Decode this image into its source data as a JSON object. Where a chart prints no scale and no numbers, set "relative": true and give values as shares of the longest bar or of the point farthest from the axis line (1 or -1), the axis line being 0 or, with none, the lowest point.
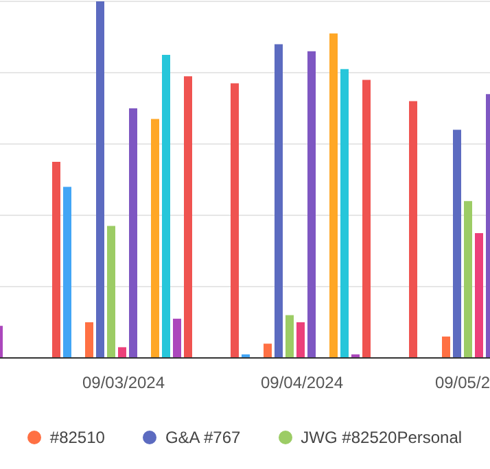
{
  "chart_data": {
    "type": "bar",
    "relative": true,
    "grid": "y",
    "legend": "bottom",
    "categories": [
      null,
      "09/03/2024",
      "09/04/2024",
      "09/05/2"
    ],
    "series": [
      {
        "color": "#ef5350",
        "values": [
          null,
          0.55,
          0.77,
          0.72
        ]
      },
      {
        "color": "#42a5f5",
        "values": [
          null,
          0.48,
          0.01,
          null
        ]
      },
      {
        "color": "#66bb6a",
        "values": [
          null,
          null,
          null,
          null
        ]
      },
      {
        "name": "#82510",
        "color": "#ff7043",
        "values": [
          null,
          0.1,
          0.04,
          0.06
        ]
      },
      {
        "name": "G&A #767",
        "color": "#5c6bc0",
        "values": [
          null,
          1.0,
          0.88,
          0.64
        ]
      },
      {
        "name": "JWG #82520Personal",
        "color": "#9ccc65",
        "values": [
          null,
          0.37,
          0.12,
          0.44
        ]
      },
      {
        "color": "#ec407a",
        "values": [
          null,
          0.03,
          0.1,
          0.35
        ]
      },
      {
        "color": "#7e57c2",
        "values": [
          null,
          0.7,
          0.86,
          0.74
        ]
      },
      {
        "color": "#8d6e63",
        "values": [
          null,
          null,
          null,
          null
        ]
      },
      {
        "color": "#ffa726",
        "values": [
          null,
          0.67,
          0.91,
          null
        ]
      },
      {
        "color": "#26c6da",
        "values": [
          null,
          0.85,
          0.81,
          null
        ]
      },
      {
        "color": "#ab47bc",
        "values": [
          0.09,
          0.11,
          0.01,
          null
        ]
      },
      {
        "color": "#ef5350",
        "values": [
          null,
          0.79,
          0.78,
          null
        ]
      }
    ]
  }
}
